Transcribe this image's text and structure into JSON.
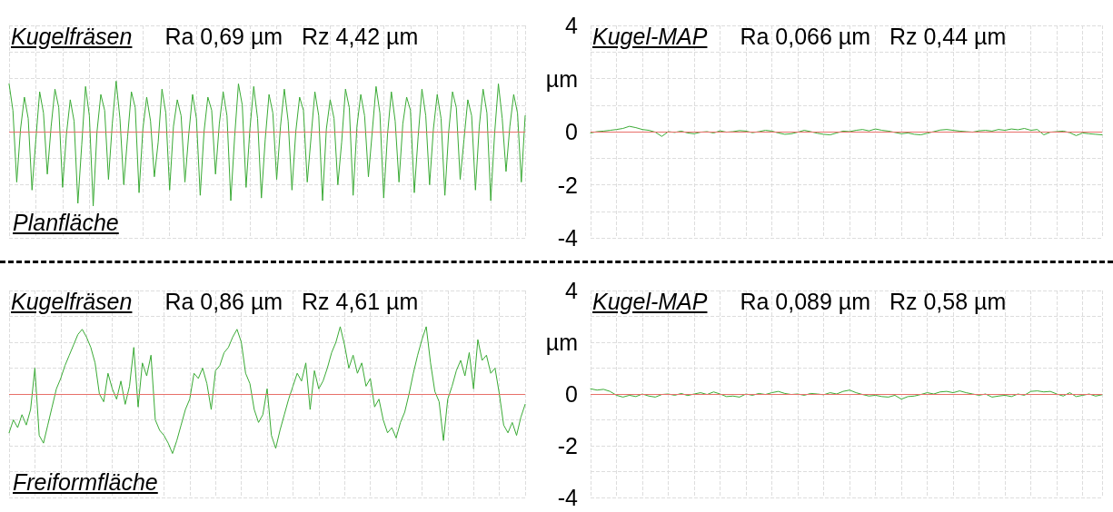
{
  "chart_data": [
    {
      "type": "line",
      "title": "Kugelfräsen",
      "subtitle": "Ra 0,69 µm   Rz 4,42 µm",
      "annotations": [
        "Planfläche"
      ],
      "categories": [
        null,
        null,
        null,
        null,
        null,
        null,
        null,
        null,
        null,
        null,
        null,
        null,
        null,
        null,
        null,
        null,
        null,
        null,
        null,
        null,
        null,
        null,
        null,
        null,
        null,
        null,
        null,
        null,
        null,
        null,
        null,
        null,
        null,
        null,
        null,
        null,
        null,
        null,
        null,
        null,
        null,
        null,
        null,
        null,
        null,
        null,
        null,
        null,
        null,
        null,
        null,
        null,
        null,
        null,
        null,
        null,
        null,
        null,
        null,
        null,
        null,
        null,
        null,
        null,
        null,
        null,
        null,
        null,
        null,
        null,
        null,
        null,
        null,
        null,
        null,
        null,
        null,
        null,
        null,
        null,
        null,
        null,
        null,
        null,
        null,
        null,
        null,
        null,
        null,
        null,
        null,
        null,
        null,
        null,
        null,
        null,
        null,
        null,
        null,
        null,
        null,
        null,
        null,
        null,
        null,
        null,
        null,
        null,
        null,
        null,
        null,
        null,
        null,
        null,
        null,
        null,
        null,
        null,
        null,
        null,
        null,
        null,
        null,
        null,
        null,
        null,
        null,
        null,
        null,
        null,
        null,
        null,
        null,
        null,
        null,
        null
      ],
      "series": [
        {
          "color": "#3aaa35",
          "values": [
            1.8,
            0.8,
            -1.9,
            0.1,
            1.3,
            0.5,
            -2.2,
            -0.3,
            1.5,
            0.7,
            -1.6,
            0.2,
            1.6,
            0.9,
            -2.1,
            -0.1,
            1.2,
            0.4,
            -2.7,
            -0.5,
            1.7,
            0.6,
            -2.8,
            0.0,
            1.4,
            0.8,
            -1.8,
            0.3,
            1.9,
            0.5,
            -2.0,
            -0.2,
            1.5,
            0.9,
            -2.3,
            0.1,
            1.3,
            0.4,
            -1.7,
            -0.4,
            1.6,
            0.7,
            -2.2,
            0.2,
            1.2,
            0.6,
            -1.9,
            -0.1,
            1.4,
            0.5,
            -2.4,
            0.0,
            1.3,
            0.8,
            -1.6,
            0.3,
            1.5,
            0.6,
            -2.6,
            -0.2,
            1.8,
            1.0,
            -2.1,
            0.1,
            1.7,
            0.5,
            -2.5,
            -0.3,
            1.4,
            0.7,
            -1.8,
            0.2,
            1.6,
            0.4,
            -2.2,
            0.0,
            1.3,
            0.8,
            -1.9,
            -0.2,
            1.5,
            0.6,
            -2.6,
            0.1,
            1.2,
            0.5,
            -2.0,
            -0.4,
            1.6,
            0.9,
            -2.4,
            0.2,
            1.4,
            0.6,
            -1.7,
            0.0,
            1.7,
            0.7,
            -2.5,
            -0.1,
            1.5,
            0.4,
            -1.9,
            0.3,
            1.3,
            0.8,
            -2.3,
            -0.2,
            1.6,
            0.6,
            -2.0,
            0.1,
            1.4,
            0.5,
            -2.4,
            0.0,
            1.5,
            0.9,
            -1.8,
            -0.3,
            1.2,
            0.6,
            -2.2,
            0.2,
            1.6,
            0.7,
            -2.6,
            -0.1,
            1.8,
            0.5,
            -1.5,
            0.2,
            1.4,
            0.7,
            -1.9,
            0.6
          ]
        }
      ],
      "ylim": [
        -4,
        4
      ],
      "yticks": [
        -4,
        -3,
        -2,
        -1,
        0,
        1,
        2,
        3,
        4
      ],
      "grid": true,
      "tick_labels": false,
      "ref_lines": [
        {
          "axis": "y",
          "value": 0,
          "color": "#e8706a"
        }
      ]
    },
    {
      "type": "line",
      "title": "Kugel-MAP",
      "subtitle": "Ra 0,066 µm   Rz 0,44 µm",
      "categories": [
        null,
        null,
        null,
        null,
        null,
        null,
        null,
        null,
        null,
        null,
        null,
        null,
        null,
        null,
        null,
        null,
        null,
        null,
        null,
        null,
        null,
        null,
        null,
        null,
        null,
        null,
        null,
        null,
        null,
        null,
        null,
        null,
        null,
        null,
        null,
        null,
        null,
        null,
        null,
        null,
        null,
        null,
        null,
        null,
        null,
        null,
        null,
        null,
        null,
        null,
        null,
        null,
        null,
        null,
        null,
        null,
        null,
        null,
        null,
        null,
        null,
        null,
        null,
        null,
        null,
        null,
        null,
        null,
        null,
        null,
        null,
        null,
        null,
        null,
        null,
        null,
        null,
        null,
        null,
        null
      ],
      "series": [
        {
          "color": "#3aaa35",
          "values": [
            -0.05,
            0.0,
            0.02,
            0.05,
            0.08,
            0.12,
            0.2,
            0.15,
            0.08,
            0.05,
            -0.02,
            -0.18,
            0.0,
            -0.03,
            0.02,
            -0.05,
            -0.08,
            -0.02,
            0.0,
            -0.05,
            0.03,
            -0.02,
            0.0,
            0.04,
            0.02,
            -0.04,
            0.0,
            0.05,
            0.02,
            -0.05,
            -0.1,
            -0.08,
            -0.02,
            0.05,
            0.0,
            -0.06,
            -0.1,
            -0.12,
            -0.05,
            0.02,
            0.0,
            0.05,
            0.08,
            0.03,
            0.1,
            0.05,
            0.02,
            -0.03,
            -0.08,
            -0.05,
            -0.1,
            -0.12,
            -0.06,
            0.0,
            0.06,
            0.08,
            0.05,
            0.02,
            0.0,
            -0.02,
            0.03,
            0.05,
            0.02,
            0.08,
            0.05,
            0.1,
            0.07,
            0.12,
            0.05,
            0.08,
            -0.12,
            -0.02,
            0.0,
            0.02,
            -0.04,
            -0.15,
            -0.05,
            -0.08,
            -0.1,
            -0.12
          ]
        }
      ],
      "ylim": [
        -4,
        4
      ],
      "yticks": [
        -4,
        {
          "value": -3,
          "label": null
        },
        -2,
        {
          "value": -1,
          "label": null
        },
        0,
        {
          "value": 1,
          "label": null
        },
        {
          "value": 2,
          "label": "µm"
        },
        {
          "value": 3,
          "label": null
        },
        4
      ],
      "grid": true,
      "tick_labels": "y",
      "ref_lines": [
        {
          "axis": "y",
          "value": 0,
          "color": "#e8706a"
        }
      ]
    },
    {
      "type": "line",
      "title": "Kugelfräsen",
      "subtitle": "Ra 0,86 µm   Rz 4,61 µm",
      "annotations": [
        "Freiformfläche"
      ],
      "categories": [
        null,
        null,
        null,
        null,
        null,
        null,
        null,
        null,
        null,
        null,
        null,
        null,
        null,
        null,
        null,
        null,
        null,
        null,
        null,
        null,
        null,
        null,
        null,
        null,
        null,
        null,
        null,
        null,
        null,
        null,
        null,
        null,
        null,
        null,
        null,
        null,
        null,
        null,
        null,
        null,
        null,
        null,
        null,
        null,
        null,
        null,
        null,
        null,
        null,
        null,
        null,
        null,
        null,
        null,
        null,
        null,
        null,
        null,
        null,
        null,
        null,
        null,
        null,
        null,
        null,
        null,
        null,
        null,
        null,
        null,
        null,
        null,
        null,
        null,
        null,
        null,
        null,
        null,
        null,
        null,
        null,
        null,
        null,
        null,
        null,
        null,
        null,
        null,
        null,
        null,
        null,
        null,
        null,
        null,
        null,
        null,
        null,
        null,
        null,
        null,
        null,
        null,
        null,
        null,
        null,
        null,
        null,
        null,
        null,
        null,
        null,
        null,
        null,
        null,
        null,
        null,
        null,
        null,
        null,
        null,
        null
      ],
      "series": [
        {
          "color": "#3aaa35",
          "values": [
            -1.5,
            -1.0,
            -1.3,
            -0.8,
            -1.2,
            -0.6,
            1.0,
            -1.6,
            -1.9,
            -1.2,
            -0.5,
            0.2,
            0.6,
            1.1,
            1.5,
            1.9,
            2.3,
            2.5,
            2.2,
            1.8,
            1.2,
            0.0,
            -0.3,
            0.8,
            0.2,
            -0.2,
            0.5,
            -0.4,
            0.3,
            1.8,
            -0.5,
            1.2,
            0.7,
            1.5,
            -1.0,
            -1.4,
            -1.6,
            -1.9,
            -2.3,
            -1.8,
            -1.2,
            -0.6,
            -0.2,
            0.8,
            0.6,
            1.0,
            0.4,
            -0.6,
            0.9,
            1.1,
            1.6,
            1.8,
            2.2,
            2.5,
            2.0,
            0.8,
            0.4,
            -0.6,
            -1.1,
            -0.8,
            0.2,
            -1.6,
            -2.1,
            -1.4,
            -0.8,
            -0.2,
            0.3,
            0.8,
            0.5,
            1.2,
            -0.6,
            0.9,
            0.2,
            0.5,
            1.0,
            1.6,
            2.0,
            2.6,
            1.9,
            1.0,
            1.5,
            0.8,
            1.2,
            0.3,
            0.6,
            -0.5,
            -0.2,
            -1.0,
            -1.5,
            -1.3,
            -1.7,
            -1.1,
            -0.7,
            0.0,
            0.8,
            1.5,
            2.1,
            2.6,
            1.2,
            0.1,
            -0.3,
            -1.8,
            -0.2,
            0.3,
            0.9,
            1.3,
            0.7,
            1.6,
            0.2,
            2.1,
            1.3,
            1.5,
            0.8,
            1.0,
            0.0,
            -1.2,
            -1.5,
            -1.1,
            -1.6,
            -0.9,
            -0.4
          ]
        }
      ],
      "ylim": [
        -4,
        4
      ],
      "yticks": [
        -4,
        -3,
        -2,
        -1,
        0,
        1,
        2,
        3,
        4
      ],
      "grid": true,
      "tick_labels": false,
      "ref_lines": [
        {
          "axis": "y",
          "value": 0,
          "color": "#e8706a"
        }
      ]
    },
    {
      "type": "line",
      "title": "Kugel-MAP",
      "subtitle": "Ra 0,089 µm   Rz 0,58 µm",
      "categories": [
        null,
        null,
        null,
        null,
        null,
        null,
        null,
        null,
        null,
        null,
        null,
        null,
        null,
        null,
        null,
        null,
        null,
        null,
        null,
        null,
        null,
        null,
        null,
        null,
        null,
        null,
        null,
        null,
        null,
        null,
        null,
        null,
        null,
        null,
        null,
        null,
        null,
        null,
        null,
        null,
        null,
        null,
        null,
        null,
        null,
        null,
        null,
        null,
        null,
        null,
        null,
        null,
        null,
        null,
        null,
        null,
        null,
        null,
        null,
        null,
        null,
        null,
        null,
        null,
        null,
        null,
        null,
        null,
        null,
        null,
        null,
        null,
        null,
        null,
        null,
        null,
        null,
        null,
        null,
        null
      ],
      "series": [
        {
          "color": "#3aaa35",
          "values": [
            0.2,
            0.15,
            0.18,
            0.1,
            -0.05,
            -0.12,
            -0.05,
            -0.1,
            0.0,
            -0.08,
            -0.12,
            -0.02,
            0.0,
            -0.05,
            0.02,
            -0.06,
            0.0,
            0.05,
            -0.02,
            0.08,
            0.0,
            -0.1,
            -0.08,
            -0.12,
            0.0,
            -0.05,
            0.02,
            -0.02,
            0.05,
            0.1,
            0.02,
            -0.02,
            0.0,
            -0.05,
            0.02,
            0.0,
            -0.03,
            0.05,
            0.0,
            0.1,
            0.15,
            0.05,
            -0.02,
            -0.08,
            -0.05,
            -0.1,
            -0.12,
            -0.05,
            -0.2,
            -0.1,
            -0.08,
            -0.02,
            0.05,
            0.0,
            0.08,
            0.1,
            0.05,
            0.12,
            0.05,
            0.0,
            -0.05,
            0.0,
            -0.12,
            -0.08,
            -0.05,
            -0.1,
            0.0,
            -0.05,
            0.1,
            0.12,
            0.08,
            0.1,
            0.0,
            -0.08,
            0.05,
            -0.1,
            -0.05,
            0.0,
            -0.08,
            -0.03
          ]
        }
      ],
      "ylim": [
        -4,
        4
      ],
      "yticks": [
        -4,
        {
          "value": -3,
          "label": null
        },
        -2,
        {
          "value": -1,
          "label": null
        },
        0,
        {
          "value": 1,
          "label": null
        },
        {
          "value": 2,
          "label": "µm"
        },
        {
          "value": 3,
          "label": null
        },
        4
      ],
      "grid": true,
      "tick_labels": "y",
      "ref_lines": [
        {
          "axis": "y",
          "value": 0,
          "color": "#e8706a"
        }
      ]
    }
  ]
}
